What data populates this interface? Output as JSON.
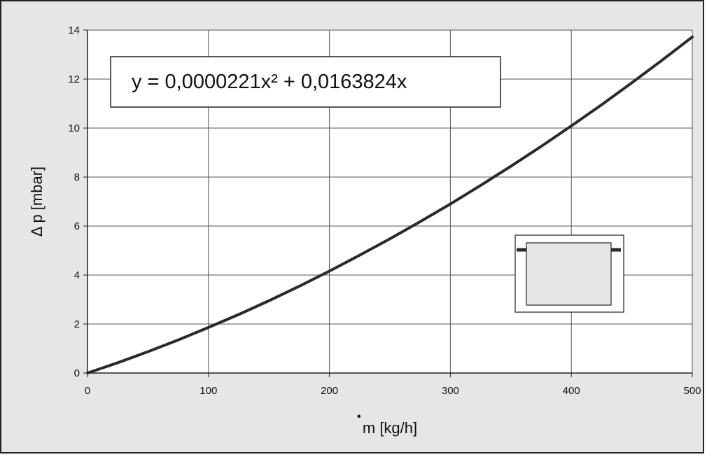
{
  "chart_data": {
    "type": "line",
    "title": "",
    "xlabel": "m [kg/h]",
    "ylabel": "Δ p [mbar]",
    "xlim": [
      0,
      500
    ],
    "ylim": [
      0,
      14
    ],
    "x_ticks": [
      0,
      100,
      200,
      300,
      400,
      500
    ],
    "y_ticks": [
      0,
      2,
      4,
      6,
      8,
      10,
      12,
      14
    ],
    "x_tick_labels": [
      "0",
      "100",
      "200",
      "300",
      "400",
      "500"
    ],
    "y_tick_labels": [
      "0",
      "2",
      "4",
      "6",
      "8",
      "10",
      "12",
      "14"
    ],
    "grid": true,
    "annotation": "y = 0,0000221x² + 0,0163824x",
    "series": [
      {
        "x": [
          0,
          25,
          50,
          75,
          100,
          125,
          150,
          175,
          200,
          225,
          250,
          275,
          300,
          325,
          350,
          375,
          400,
          425,
          450,
          475,
          500
        ],
        "values": [
          0,
          0.42,
          0.87,
          1.35,
          1.86,
          2.39,
          2.95,
          3.54,
          4.16,
          4.81,
          5.48,
          6.18,
          6.9,
          7.66,
          8.44,
          9.25,
          10.09,
          10.95,
          11.85,
          12.77,
          13.72
        ]
      }
    ],
    "colors": {
      "background": "#e6e6e6",
      "plot_area": "#ffffff",
      "line": "#2a2a2a",
      "grid": "#555555",
      "icon_fill": "#e6e6e6"
    }
  }
}
